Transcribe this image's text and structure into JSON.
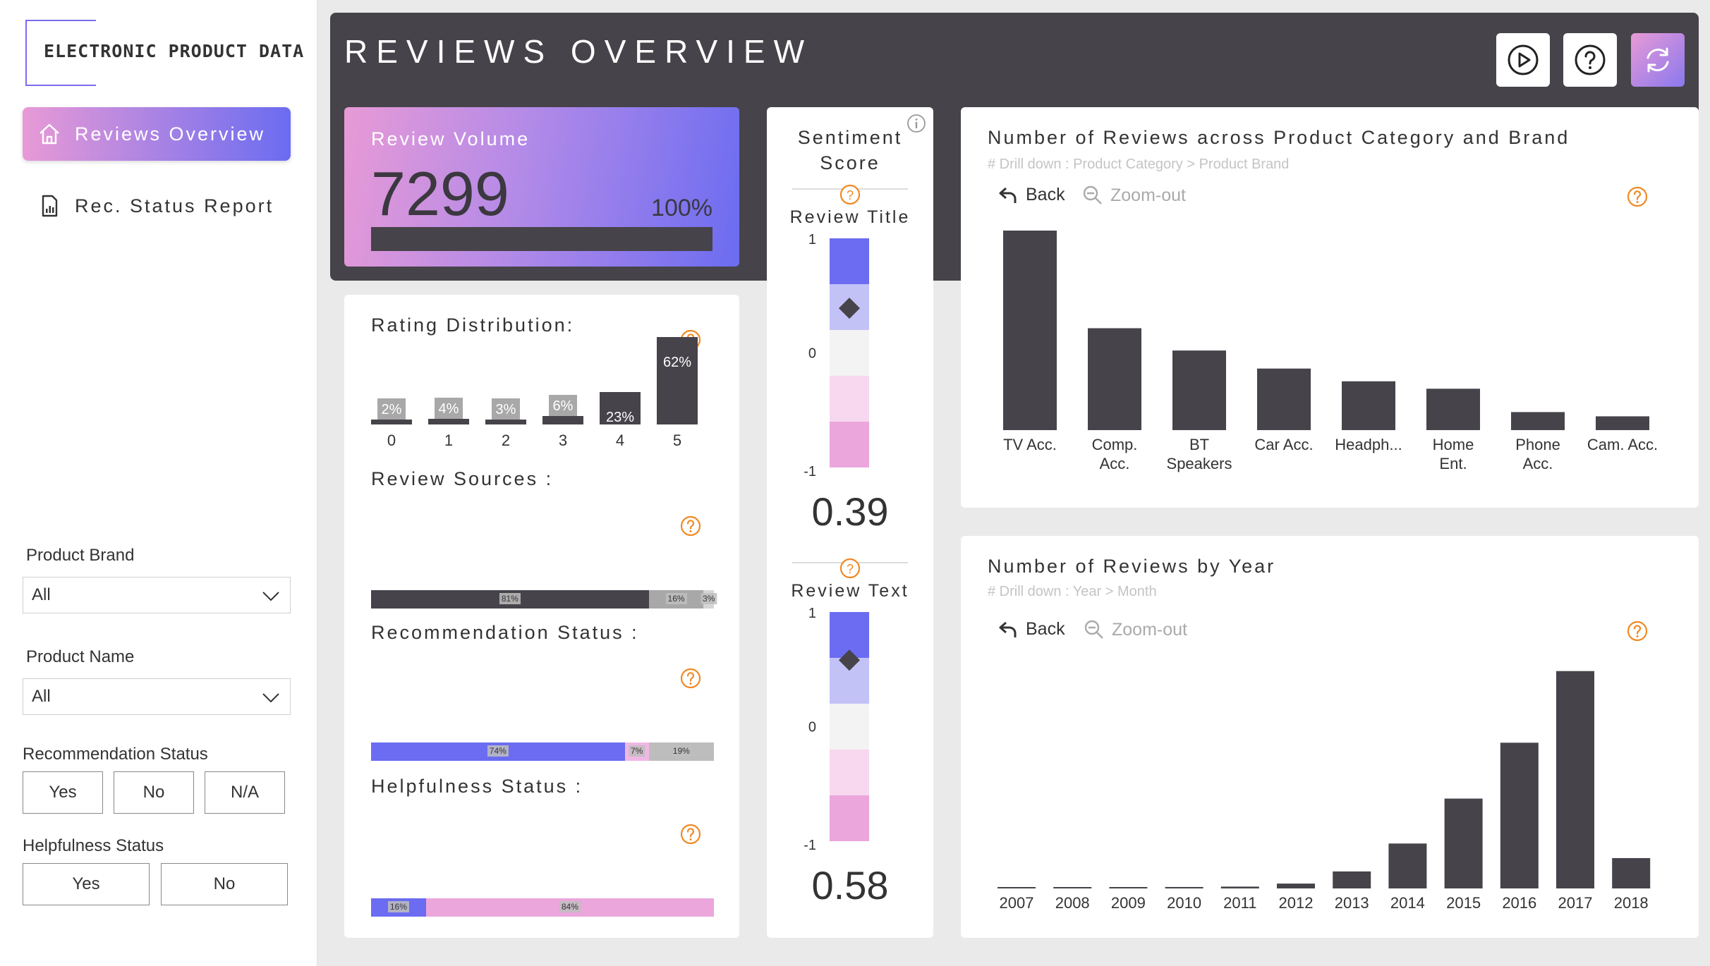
{
  "sidebar": {
    "logo_text": "ELECTRONIC PRODUCT DATA",
    "nav": [
      {
        "label": "Reviews Overview",
        "icon": "home-icon",
        "active": true
      },
      {
        "label": "Rec. Status Report",
        "icon": "report-icon",
        "active": false
      }
    ],
    "filters": {
      "brand_label": "Product Brand",
      "brand_value": "All",
      "name_label": "Product Name",
      "name_value": "All",
      "rec_label": "Recommendation Status",
      "rec_options": [
        "Yes",
        "No",
        "N/A"
      ],
      "help_label": "Helpfulness Status",
      "help_options": [
        "Yes",
        "No"
      ]
    }
  },
  "header": {
    "title": "REVIEWS OVERVIEW",
    "buttons": [
      "play-icon",
      "help-icon",
      "refresh-icon"
    ]
  },
  "kpi": {
    "label": "Review Volume",
    "value": "7299",
    "percent_label": "100%",
    "fill": 1.0
  },
  "rating": {
    "title": "Rating Distribution:",
    "categories": [
      "0",
      "1",
      "2",
      "3",
      "4",
      "5"
    ],
    "values": [
      2,
      4,
      3,
      6,
      23,
      62
    ],
    "labels": [
      "2%",
      "4%",
      "3%",
      "6%",
      "23%",
      "62%"
    ]
  },
  "sources": {
    "title": "Review Sources :",
    "segments": [
      {
        "value": 81,
        "label": "81%",
        "color": "#46434a"
      },
      {
        "value": 16,
        "label": "16%",
        "color": "#a8a8a8"
      },
      {
        "value": 3,
        "label": "3%",
        "color": "#d6d6d6"
      }
    ]
  },
  "recommendation": {
    "title": "Recommendation Status :",
    "segments": [
      {
        "value": 74,
        "label": "74%",
        "color": "#6b6cf1"
      },
      {
        "value": 7,
        "label": "7%",
        "color": "#f1b7e4"
      },
      {
        "value": 19,
        "label": "19%",
        "color": "#bdbdbd"
      }
    ]
  },
  "helpfulness": {
    "title": "Helpfulness Status :",
    "segments": [
      {
        "value": 16,
        "label": "16%",
        "color": "#6b6cf1"
      },
      {
        "value": 84,
        "label": "84%",
        "color": "#eba6dc"
      }
    ]
  },
  "sentiment": {
    "title_line1": "Sentiment",
    "title_line2": "Score",
    "title_gauge": {
      "label": "Review Title",
      "value": 0.39,
      "value_label": "0.39",
      "max_label": "1",
      "mid_label": "0",
      "min_label": "-1"
    },
    "text_gauge": {
      "label": "Review Text",
      "value": 0.58,
      "value_label": "0.58",
      "max_label": "1",
      "mid_label": "0",
      "min_label": "-1"
    },
    "band_colors": [
      "#6b6cf1",
      "#c3c2f7",
      "#f3f3f3",
      "#f7d8ef",
      "#eba6dc"
    ]
  },
  "chart_category": {
    "title": "Number of Reviews across Product Category and Brand",
    "subtitle": "# Drill down : Product Category > Product Brand",
    "back_label": "Back",
    "zoom_label": "Zoom-out"
  },
  "chart_year": {
    "title": "Number of Reviews by Year",
    "subtitle": "# Drill down : Year > Month",
    "back_label": "Back",
    "zoom_label": "Zoom-out"
  },
  "chart_data": [
    {
      "type": "bar",
      "title": "Number of Reviews across Product Category and Brand",
      "categories": [
        "TV Acc.",
        "Comp. Acc.",
        "BT Speakers",
        "Car Acc.",
        "Headph...",
        "Home Ent.",
        "Phone Acc.",
        "Cam. Acc."
      ],
      "category_lines": [
        [
          "TV Acc."
        ],
        [
          "Comp.",
          "Acc."
        ],
        [
          "BT",
          "Speakers"
        ],
        [
          "Car Acc."
        ],
        [
          "Headph..."
        ],
        [
          "Home",
          "Ent."
        ],
        [
          "Phone",
          "Acc."
        ],
        [
          "Cam. Acc."
        ]
      ],
      "values": [
        1880,
        960,
        750,
        580,
        460,
        390,
        170,
        130
      ],
      "ylim": [
        0,
        1900
      ],
      "grid": false,
      "color": "#46434a"
    },
    {
      "type": "bar",
      "title": "Number of Reviews by Year",
      "categories": [
        "2007",
        "2008",
        "2009",
        "2010",
        "2011",
        "2012",
        "2013",
        "2014",
        "2015",
        "2016",
        "2017",
        "2018"
      ],
      "values": [
        5,
        8,
        10,
        12,
        15,
        40,
        140,
        370,
        740,
        1200,
        1790,
        250
      ],
      "ylim": [
        0,
        1800
      ],
      "grid": false,
      "color": "#46434a"
    }
  ]
}
